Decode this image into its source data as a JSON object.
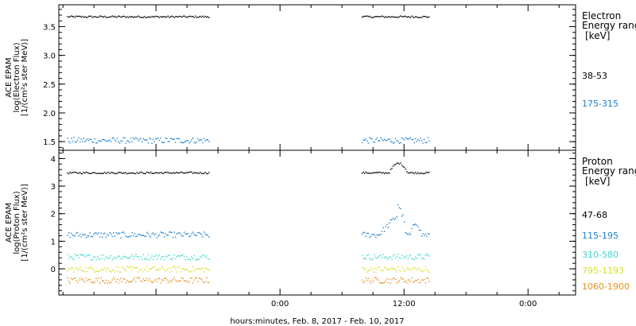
{
  "chart_data": [
    {
      "type": "scatter",
      "panel": "electron",
      "ylabel": [
        "ACE EPAM",
        "log(Electron Flux)",
        "[1/(cm²s ster MeV)]"
      ],
      "ylim": [
        1.35,
        3.88
      ],
      "yticks": [
        "1.5",
        "2.0",
        "2.5",
        "3.0",
        "3.5"
      ],
      "ytick_values": [
        1.5,
        2.0,
        2.5,
        3.0,
        3.5
      ],
      "legend": {
        "line1": "Electron",
        "line2": "Energy ranges",
        "units": "[keV]",
        "placement": "right"
      },
      "series": [
        {
          "name": "38-53",
          "color": "#000000",
          "level": 3.68,
          "segments": [
            [
              -20.6,
              -6.9
            ],
            [
              7.9,
              14.4
            ]
          ]
        },
        {
          "name": "175-315",
          "color": "#1e7fd0",
          "level": 1.53,
          "segments": [
            [
              -20.6,
              -6.9
            ],
            [
              7.9,
              14.4
            ]
          ]
        }
      ]
    },
    {
      "type": "scatter",
      "panel": "proton",
      "ylabel": [
        "ACE EPAM",
        "log(Proton Flux)",
        "[1/(cm²s ster MeV)]"
      ],
      "ylim": [
        -0.95,
        4.3
      ],
      "yticks": [
        "0",
        "1",
        "2",
        "3",
        "4"
      ],
      "ytick_values": [
        0,
        1,
        2,
        3,
        4
      ],
      "legend": {
        "line1": "Proton",
        "line2": "Energy ranges",
        "units": "[keV]",
        "placement": "right"
      },
      "series": [
        {
          "name": "47-68",
          "color": "#000000",
          "level": 3.5,
          "segments": [
            [
              -20.6,
              -6.9
            ],
            [
              7.9,
              14.4
            ]
          ]
        },
        {
          "name": "115-195",
          "color": "#1e7fd0",
          "level": 1.25,
          "segments": [
            [
              -20.6,
              -6.9
            ],
            [
              7.9,
              14.4
            ]
          ]
        },
        {
          "name": "310-580",
          "color": "#3ed6d0",
          "level": 0.45,
          "segments": [
            [
              -20.6,
              -6.9
            ],
            [
              7.9,
              14.4
            ]
          ]
        },
        {
          "name": "795-1193",
          "color": "#d4e02a",
          "level": 0.0,
          "segments": [
            [
              -20.6,
              -6.9
            ],
            [
              7.9,
              14.4
            ]
          ]
        },
        {
          "name": "1060-1900",
          "color": "#e89020",
          "level": -0.4,
          "segments": [
            [
              -20.6,
              -6.9
            ],
            [
              7.9,
              14.4
            ]
          ]
        }
      ]
    }
  ],
  "x_axis": {
    "label": "hours:minutes, Feb.  8, 2017 - Feb. 10, 2017",
    "unit": "hours from Feb. 9, 2017 00:00",
    "xlim": [
      -21.4,
      28.6
    ],
    "major_ticks": [
      0,
      12,
      24
    ],
    "tick_labels": [
      "0:00",
      "12:00",
      "0:00"
    ]
  }
}
